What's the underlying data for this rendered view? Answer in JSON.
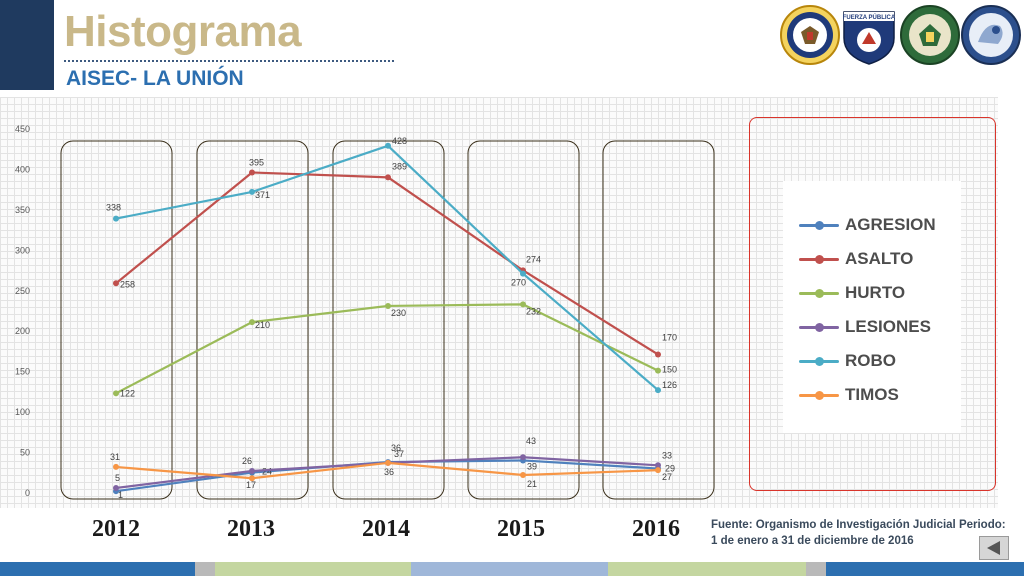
{
  "header": {
    "title": "Histograma",
    "subtitle": "AISEC- LA UNIÓN",
    "logos": [
      "us-embassy-seal-icon",
      "fuerza-publica-shield-icon",
      "policia-nacional-emblem-icon",
      "aisec-emblem-icon"
    ],
    "logo_text": "FUERZA PÚBLICA"
  },
  "chart_data": {
    "type": "line",
    "categories": [
      "2012",
      "2013",
      "2014",
      "2015",
      "2016"
    ],
    "ylim": [
      0,
      450
    ],
    "yticks": [
      0,
      50,
      100,
      150,
      200,
      250,
      300,
      350,
      400,
      450
    ],
    "grid": true,
    "legend_position": "right",
    "series": [
      {
        "name": "AGRESION",
        "color": "#4f81bd",
        "values": [
          1,
          24,
          37,
          39,
          29
        ]
      },
      {
        "name": "ASALTO",
        "color": "#c0504d",
        "values": [
          258,
          395,
          389,
          274,
          170
        ]
      },
      {
        "name": "HURTO",
        "color": "#9bbb59",
        "values": [
          122,
          210,
          230,
          232,
          150
        ]
      },
      {
        "name": "LESIONES",
        "color": "#8064a2",
        "values": [
          5,
          26,
          36,
          43,
          33
        ]
      },
      {
        "name": "ROBO",
        "color": "#4bacc6",
        "values": [
          338,
          371,
          428,
          270,
          126
        ]
      },
      {
        "name": "TIMOS",
        "color": "#f79646",
        "values": [
          31,
          17,
          36,
          21,
          27
        ]
      }
    ],
    "year_labels": [
      "2012",
      "2013",
      "2014",
      "2015",
      "2016"
    ]
  },
  "source": {
    "line1": "Fuente: Organismo de Investigación Judicial Periodo:",
    "line2": "1 de enero a 31 de diciembre de 2016"
  },
  "colors": {
    "title": "#c9b889",
    "subtitle": "#2c6fb0",
    "left_bar": "#1f3a5f",
    "legend_border": "#d9342b"
  },
  "nav": {
    "back_icon": "back-arrow-icon"
  }
}
